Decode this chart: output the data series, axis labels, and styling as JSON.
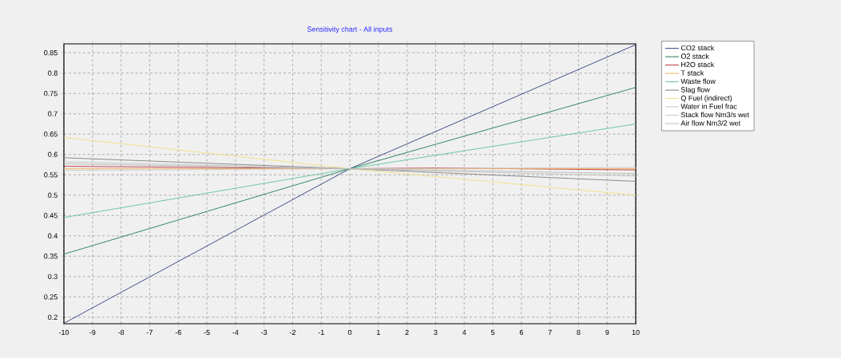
{
  "chart_data": {
    "type": "line",
    "title": "Sensitivity chart - All inputs",
    "xlim": [
      -10,
      10
    ],
    "ylim": [
      0.184,
      0.872
    ],
    "xticks": [
      -10,
      -9,
      -8,
      -7,
      -6,
      -5,
      -4,
      -3,
      -2,
      -1,
      0,
      1,
      2,
      3,
      4,
      5,
      6,
      7,
      8,
      9,
      10
    ],
    "yticks": [
      0.2,
      0.25,
      0.3,
      0.35,
      0.4,
      0.45,
      0.5,
      0.55,
      0.6,
      0.65,
      0.7,
      0.75,
      0.8,
      0.85
    ],
    "grid": true,
    "legend": "right",
    "marker": "none",
    "line_style": "solid",
    "series": [
      {
        "name": "CO2 stack",
        "color": "#2e3d7a",
        "x": [
          -10,
          0,
          10
        ],
        "values": [
          0.185,
          0.565,
          0.87
        ]
      },
      {
        "name": "O2 stack",
        "color": "#1f7a5a",
        "x": [
          -10,
          0,
          10
        ],
        "values": [
          0.355,
          0.565,
          0.765
        ]
      },
      {
        "name": "H2O stack",
        "color": "#c03030",
        "x": [
          -10,
          0,
          3,
          10
        ],
        "values": [
          0.571,
          0.565,
          0.567,
          0.562
        ]
      },
      {
        "name": "T stack",
        "color": "#f0b060",
        "x": [
          -10,
          0,
          10
        ],
        "values": [
          0.565,
          null,
          0.565
        ]
      },
      {
        "name": "Waste flow",
        "color": "#5fc0a0",
        "x": [
          -10,
          0,
          10
        ],
        "values": [
          0.445,
          0.565,
          0.675
        ]
      },
      {
        "name": "Slag flow",
        "color": "#808080",
        "x": [
          -10,
          0,
          10
        ],
        "values": [
          0.592,
          0.565,
          0.534
        ]
      },
      {
        "name": "Q Fuel (indirect)",
        "color": "#f0e080",
        "x": [
          -10,
          0,
          10
        ],
        "values": [
          0.642,
          0.565,
          0.5
        ]
      },
      {
        "name": "Water in Fuel frac",
        "color": "#c0c0c0",
        "x": [
          -10,
          0,
          10
        ],
        "values": [
          0.582,
          0.565,
          0.547
        ]
      },
      {
        "name": "Stack flow Nm3/s wet",
        "color": "#c8c8c8",
        "x": [
          -10,
          0,
          10
        ],
        "values": [
          0.561,
          0.565,
          0.568
        ]
      },
      {
        "name": "Air flow Nm3/2 wet",
        "color": "#b8b8b8",
        "x": [
          -10,
          0,
          10
        ],
        "values": [
          0.577,
          0.565,
          0.553
        ]
      }
    ]
  }
}
